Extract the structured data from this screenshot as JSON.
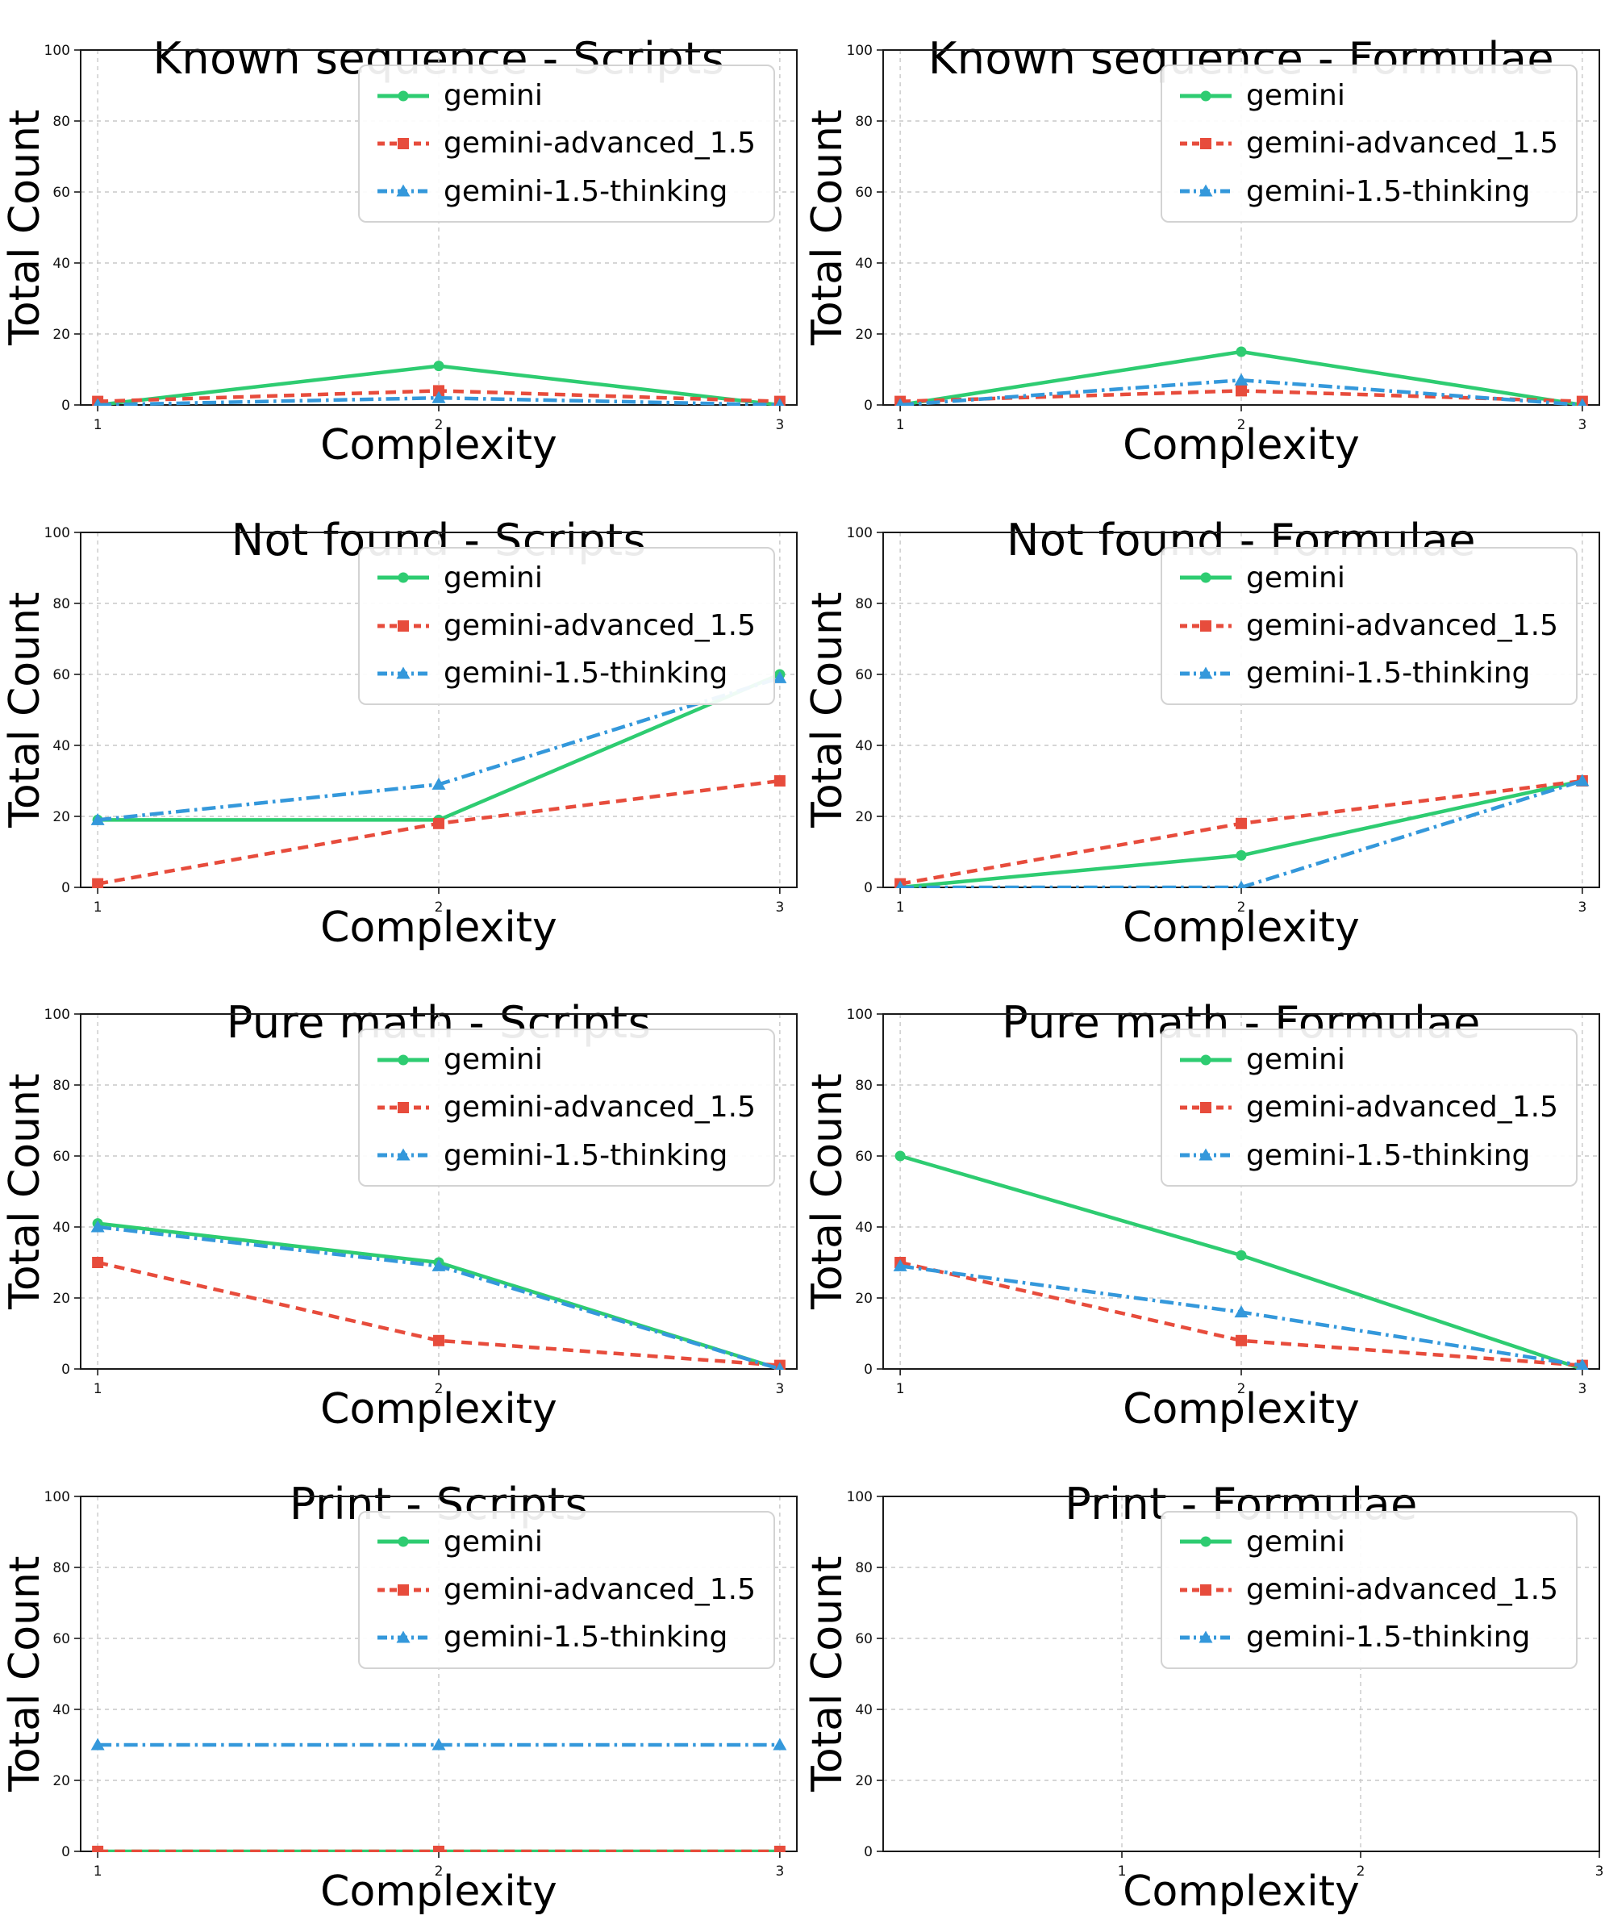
{
  "figure": {
    "background": "#ffffff",
    "rows": 4,
    "cols": 2
  },
  "styles": {
    "green": "#2ecc71",
    "red": "#e74c3c",
    "blue": "#3498db",
    "grid_color": "#c9c9c9",
    "spine_color": "#1a1a1a",
    "tick_color": "#111111",
    "legend_border": "#d3d3d3"
  },
  "legend": {
    "position": "upper right",
    "items": [
      {
        "label": "gemini",
        "color": "#2ecc71",
        "linestyle": "solid",
        "marker": "circle"
      },
      {
        "label": "gemini-advanced_1.5",
        "color": "#e74c3c",
        "linestyle": "dashed",
        "marker": "square"
      },
      {
        "label": "gemini-1.5-thinking",
        "color": "#3498db",
        "linestyle": "dashdot",
        "marker": "triangle"
      }
    ]
  },
  "chart_data": [
    {
      "type": "line",
      "title": "Known sequence - Scripts",
      "xlabel": "Complexity",
      "ylabel": "Total Count",
      "x": [
        1,
        2,
        3
      ],
      "xticks": [
        1,
        2,
        3
      ],
      "xlim": [
        0.95,
        3.05
      ],
      "ylim": [
        0,
        100
      ],
      "yticks": [
        0,
        20,
        40,
        60,
        80,
        100
      ],
      "grid": true,
      "legend_position": "upper right",
      "series": [
        {
          "name": "gemini",
          "values": [
            0,
            11,
            0
          ]
        },
        {
          "name": "gemini-advanced_1.5",
          "values": [
            1,
            4,
            1
          ]
        },
        {
          "name": "gemini-1.5-thinking",
          "values": [
            0,
            2,
            0
          ]
        }
      ]
    },
    {
      "type": "line",
      "title": "Known sequence - Formulae",
      "xlabel": "Complexity",
      "ylabel": "Total Count",
      "x": [
        1,
        2,
        3
      ],
      "xticks": [
        1,
        2,
        3
      ],
      "xlim": [
        0.95,
        3.05
      ],
      "ylim": [
        0,
        100
      ],
      "yticks": [
        0,
        20,
        40,
        60,
        80,
        100
      ],
      "grid": true,
      "legend_position": "upper right",
      "series": [
        {
          "name": "gemini",
          "values": [
            0,
            15,
            0
          ]
        },
        {
          "name": "gemini-advanced_1.5",
          "values": [
            1,
            4,
            1
          ]
        },
        {
          "name": "gemini-1.5-thinking",
          "values": [
            0,
            7,
            0
          ]
        }
      ]
    },
    {
      "type": "line",
      "title": "Not found - Scripts",
      "xlabel": "Complexity",
      "ylabel": "Total Count",
      "x": [
        1,
        2,
        3
      ],
      "xticks": [
        1,
        2,
        3
      ],
      "xlim": [
        0.95,
        3.05
      ],
      "ylim": [
        0,
        100
      ],
      "yticks": [
        0,
        20,
        40,
        60,
        80,
        100
      ],
      "grid": true,
      "legend_position": "upper right",
      "series": [
        {
          "name": "gemini",
          "values": [
            19,
            19,
            60
          ]
        },
        {
          "name": "gemini-advanced_1.5",
          "values": [
            1,
            18,
            30
          ]
        },
        {
          "name": "gemini-1.5-thinking",
          "values": [
            19,
            29,
            59
          ]
        }
      ]
    },
    {
      "type": "line",
      "title": "Not found - Formulae",
      "xlabel": "Complexity",
      "ylabel": "Total Count",
      "x": [
        1,
        2,
        3
      ],
      "xticks": [
        1,
        2,
        3
      ],
      "xlim": [
        0.95,
        3.05
      ],
      "ylim": [
        0,
        100
      ],
      "yticks": [
        0,
        20,
        40,
        60,
        80,
        100
      ],
      "grid": true,
      "legend_position": "upper right",
      "series": [
        {
          "name": "gemini",
          "values": [
            0,
            9,
            30
          ]
        },
        {
          "name": "gemini-advanced_1.5",
          "values": [
            1,
            18,
            30
          ]
        },
        {
          "name": "gemini-1.5-thinking",
          "values": [
            0,
            0,
            30
          ]
        }
      ]
    },
    {
      "type": "line",
      "title": "Pure math - Scripts",
      "xlabel": "Complexity",
      "ylabel": "Total Count",
      "x": [
        1,
        2,
        3
      ],
      "xticks": [
        1,
        2,
        3
      ],
      "xlim": [
        0.95,
        3.05
      ],
      "ylim": [
        0,
        100
      ],
      "yticks": [
        0,
        20,
        40,
        60,
        80,
        100
      ],
      "grid": true,
      "legend_position": "upper right",
      "series": [
        {
          "name": "gemini",
          "values": [
            41,
            30,
            0
          ]
        },
        {
          "name": "gemini-advanced_1.5",
          "values": [
            30,
            8,
            1
          ]
        },
        {
          "name": "gemini-1.5-thinking",
          "values": [
            40,
            29,
            0
          ]
        }
      ]
    },
    {
      "type": "line",
      "title": "Pure math - Formulae",
      "xlabel": "Complexity",
      "ylabel": "Total Count",
      "x": [
        1,
        2,
        3
      ],
      "xticks": [
        1,
        2,
        3
      ],
      "xlim": [
        0.95,
        3.05
      ],
      "ylim": [
        0,
        100
      ],
      "yticks": [
        0,
        20,
        40,
        60,
        80,
        100
      ],
      "grid": true,
      "legend_position": "upper right",
      "series": [
        {
          "name": "gemini",
          "values": [
            60,
            32,
            0
          ]
        },
        {
          "name": "gemini-advanced_1.5",
          "values": [
            30,
            8,
            1
          ]
        },
        {
          "name": "gemini-1.5-thinking",
          "values": [
            29,
            16,
            1
          ]
        }
      ]
    },
    {
      "type": "line",
      "title": "Print - Scripts",
      "xlabel": "Complexity",
      "ylabel": "Total Count",
      "x": [
        1,
        2,
        3
      ],
      "xticks": [
        1,
        2,
        3
      ],
      "xlim": [
        0.95,
        3.05
      ],
      "ylim": [
        0,
        100
      ],
      "yticks": [
        0,
        20,
        40,
        60,
        80,
        100
      ],
      "grid": true,
      "legend_position": "upper right",
      "series": [
        {
          "name": "gemini",
          "values": [
            0,
            0,
            0
          ]
        },
        {
          "name": "gemini-advanced_1.5",
          "values": [
            0,
            0,
            0
          ]
        },
        {
          "name": "gemini-1.5-thinking",
          "values": [
            30,
            30,
            30
          ]
        }
      ]
    },
    {
      "type": "line",
      "title": "Print - Formulae",
      "xlabel": "Complexity",
      "ylabel": "Total Count",
      "x": [
        1,
        2,
        3
      ],
      "xticks": [
        1,
        2,
        3
      ],
      "xlim": [
        0,
        3
      ],
      "ylim": [
        0,
        100
      ],
      "yticks": [
        0,
        20,
        40,
        60,
        80,
        100
      ],
      "grid": true,
      "legend_position": "upper right",
      "series": [
        {
          "name": "gemini",
          "values": []
        },
        {
          "name": "gemini-advanced_1.5",
          "values": []
        },
        {
          "name": "gemini-1.5-thinking",
          "values": []
        }
      ]
    }
  ]
}
